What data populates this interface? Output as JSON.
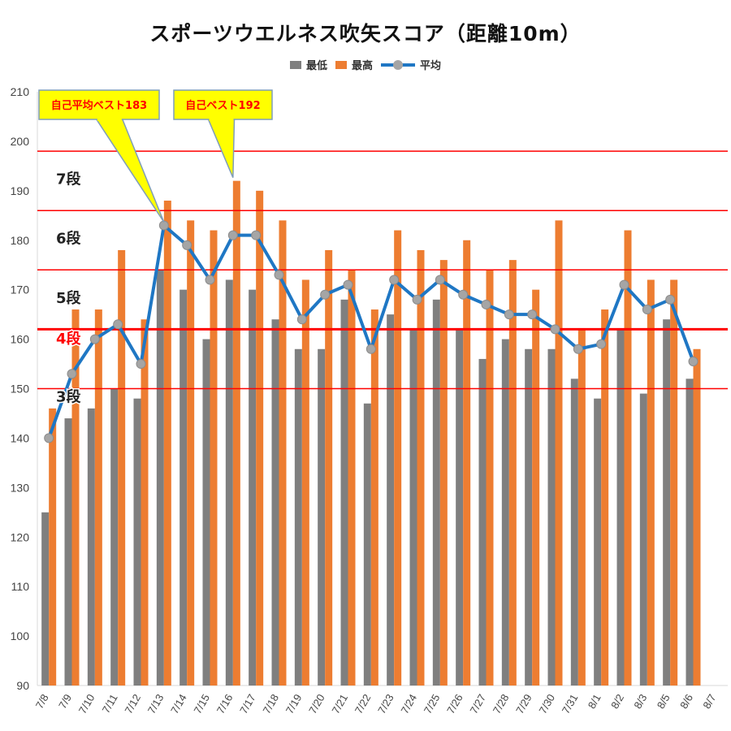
{
  "chart_data": {
    "type": "bar",
    "title": "スポーツウエルネス吹矢スコア（距離10m）",
    "categories": [
      "7/8",
      "7/9",
      "7/10",
      "7/11",
      "7/12",
      "7/13",
      "7/14",
      "7/15",
      "7/16",
      "7/17",
      "7/18",
      "7/19",
      "7/20",
      "7/21",
      "7/22",
      "7/23",
      "7/24",
      "7/25",
      "7/26",
      "7/27",
      "7/28",
      "7/29",
      "7/30",
      "7/31",
      "8/1",
      "8/2",
      "8/3",
      "8/5",
      "8/6",
      "8/7"
    ],
    "series": [
      {
        "name": "最低",
        "type": "bar",
        "color": "#7f7f7f",
        "values": [
          125,
          144,
          146,
          150,
          148,
          174,
          170,
          160,
          172,
          170,
          164,
          158,
          158,
          168,
          147,
          165,
          162,
          168,
          162,
          156,
          160,
          158,
          158,
          152,
          148,
          162,
          149,
          164,
          152,
          null
        ]
      },
      {
        "name": "最高",
        "type": "bar",
        "color": "#ed7d31",
        "values": [
          146,
          166,
          166,
          178,
          164,
          188,
          184,
          182,
          192,
          190,
          184,
          172,
          178,
          174,
          166,
          182,
          178,
          176,
          180,
          174,
          176,
          170,
          184,
          162,
          166,
          182,
          172,
          172,
          158,
          null
        ]
      },
      {
        "name": "平均",
        "type": "line",
        "color": "#1f77c4",
        "marker_color": "#a5a5a5",
        "values": [
          140,
          153,
          160,
          163,
          155,
          183,
          179,
          172,
          181,
          181,
          173,
          164,
          169,
          171,
          158,
          172,
          168,
          172,
          169,
          167,
          165,
          165,
          162,
          158,
          159,
          171,
          166,
          168,
          155.5,
          null
        ]
      }
    ],
    "ylim": [
      90,
      210
    ],
    "yticks": [
      90,
      100,
      110,
      120,
      130,
      140,
      150,
      160,
      170,
      180,
      190,
      200,
      210
    ],
    "legend": "top-center",
    "grid": false,
    "reference_lines": [
      {
        "value": 198,
        "label": "7段",
        "label_at": 192.5,
        "color": "#ff0000",
        "bold": false,
        "label_color": "#222222"
      },
      {
        "value": 186,
        "label": "6段",
        "label_at": 180.5,
        "color": "#ff0000",
        "bold": false,
        "label_color": "#222222"
      },
      {
        "value": 174,
        "label": "5段",
        "label_at": 168.5,
        "color": "#ff0000",
        "bold": false,
        "label_color": "#222222"
      },
      {
        "value": 162,
        "label": "4段",
        "label_at": 160.3,
        "color": "#ff0000",
        "bold": true,
        "label_color": "#ff0000"
      },
      {
        "value": 150,
        "label": "3段",
        "label_at": 148.5,
        "color": "#ff0000",
        "bold": false,
        "label_color": "#222222"
      }
    ],
    "callouts": [
      {
        "text": "自己平均ベスト183",
        "point_index": 5,
        "point_value": 183,
        "text_color": "#ff0000",
        "fill": "#ffff00"
      },
      {
        "text": "自己ベスト192",
        "point_index": 8,
        "point_value": 192,
        "text_color": "#ff0000",
        "fill": "#ffff00"
      }
    ]
  }
}
